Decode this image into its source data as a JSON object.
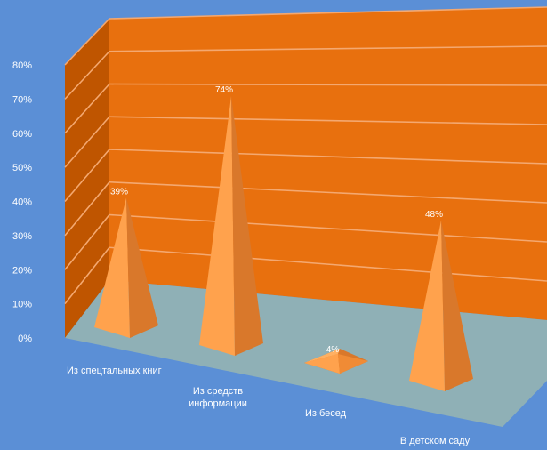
{
  "chart_data": {
    "type": "bar",
    "style": "3d-pyramid",
    "categories": [
      "Из спецтальных книг",
      "Из средств\nинформации",
      "Из бесед",
      "В детском саду"
    ],
    "values": [
      39,
      74,
      4,
      48
    ],
    "data_labels": [
      "39%",
      "74%",
      "4%",
      "48%"
    ],
    "ylim": [
      0,
      80
    ],
    "yticks": [
      "0%",
      "10%",
      "20%",
      "30%",
      "40%",
      "50%",
      "60%",
      "70%",
      "80%"
    ],
    "grid": true,
    "colors": {
      "background": "#5b8fd6",
      "back_wall": "#e8700e",
      "side_wall": "#bf5500",
      "floor": "#8fb0b6",
      "gridline": "#f4a870",
      "pyramid_light": "#ffa24d",
      "pyramid_dark": "#d9782b",
      "pyramid_mid": "#f08b35"
    }
  }
}
